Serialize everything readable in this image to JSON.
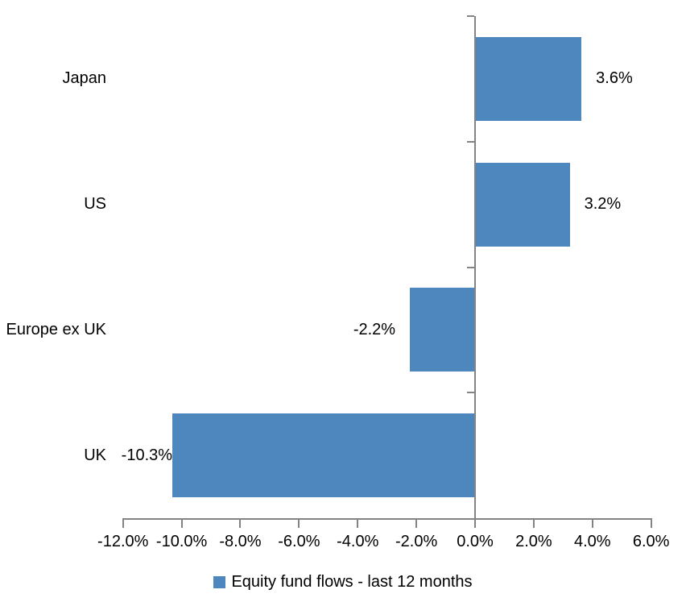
{
  "chart_data": {
    "type": "bar",
    "orientation": "horizontal",
    "title": "",
    "categories": [
      "Japan",
      "US",
      "Europe ex UK",
      "UK"
    ],
    "series": [
      {
        "name": "Equity fund flows - last 12 months",
        "values": [
          3.6,
          3.2,
          -2.2,
          -10.3
        ],
        "data_labels": [
          "3.6%",
          "3.2%",
          "-2.2%",
          "-10.3%"
        ]
      }
    ],
    "xlabel": "",
    "ylabel": "",
    "xlim": [
      -12,
      6
    ],
    "x_tick_values": [
      -12,
      -10,
      -8,
      -6,
      -4,
      -2,
      0,
      2,
      4,
      6
    ],
    "x_tick_labels": [
      "-12.0%",
      "-10.0%",
      "-8.0%",
      "-6.0%",
      "-4.0%",
      "-2.0%",
      "0.0%",
      "2.0%",
      "4.0%",
      "6.0%"
    ],
    "grid": false,
    "legend_position": "bottom",
    "bar_color": "#4E87BE",
    "axis_color": "#848484",
    "text_color": "#000000",
    "background_color": "#FFFFFF"
  },
  "legend": {
    "label": "Equity fund flows - last 12 months",
    "marker_color": "#4E87BE"
  }
}
